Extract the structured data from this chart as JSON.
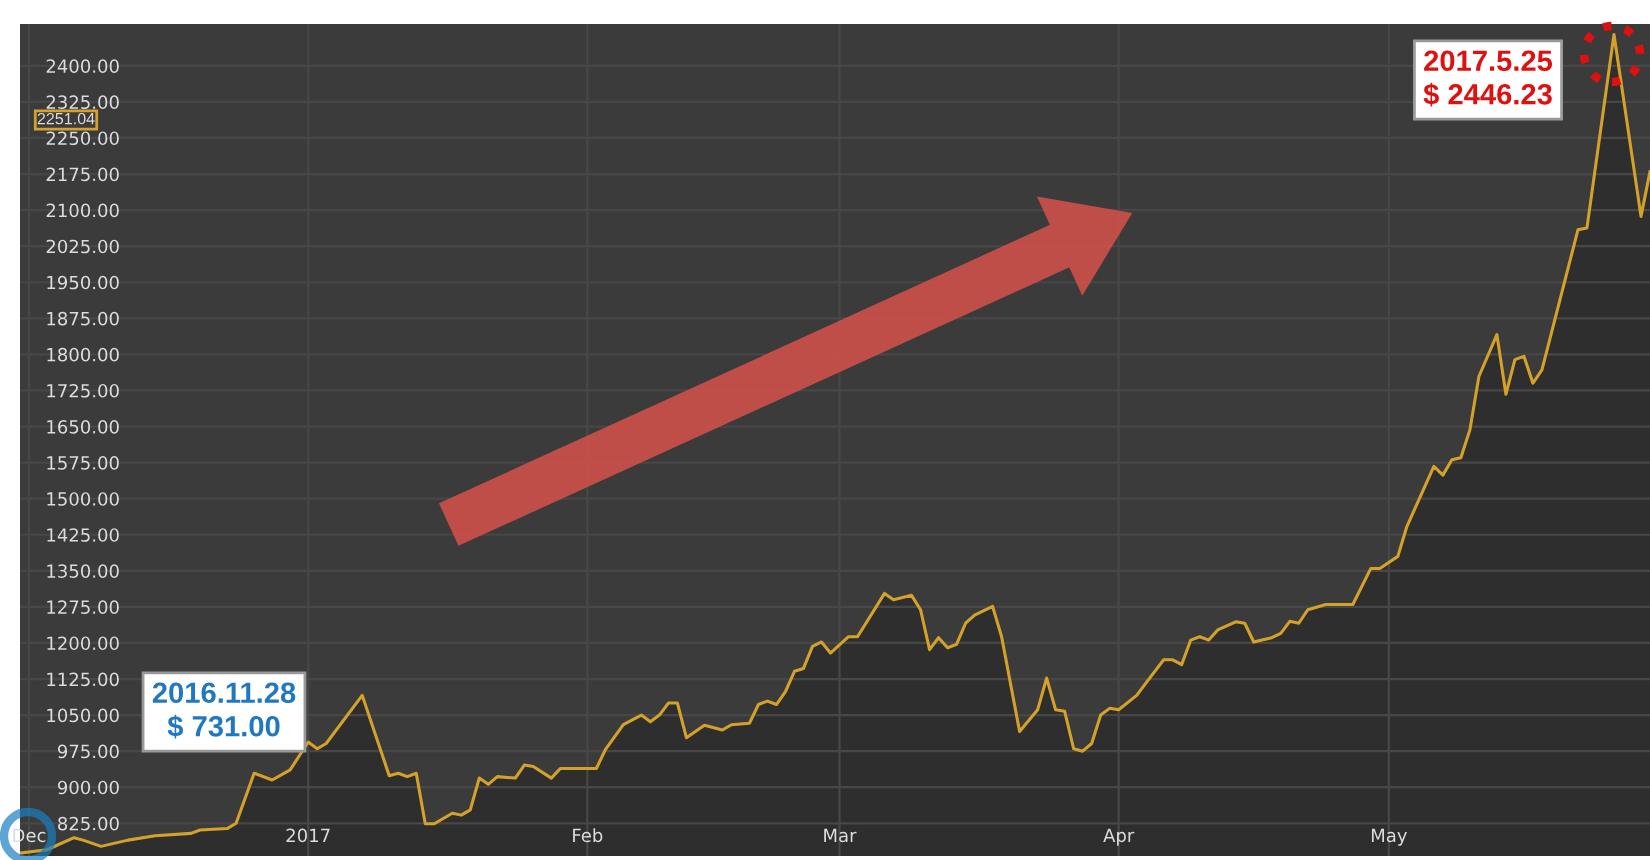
{
  "chart_data": {
    "type": "area",
    "x": [
      "2016-11-30",
      "2016-12-03",
      "2016-12-06",
      "2016-12-07",
      "2016-12-09",
      "2016-12-12",
      "2016-12-15",
      "2016-12-19",
      "2016-12-20",
      "2016-12-23",
      "2016-12-24",
      "2016-12-26",
      "2016-12-28",
      "2016-12-30",
      "2017-01-01",
      "2017-01-02",
      "2017-01-03",
      "2017-01-07",
      "2017-01-10",
      "2017-01-11",
      "2017-01-12",
      "2017-01-13",
      "2017-01-14",
      "2017-01-15",
      "2017-01-17",
      "2017-01-18",
      "2017-01-19",
      "2017-01-20",
      "2017-01-21",
      "2017-01-22",
      "2017-01-24",
      "2017-01-25",
      "2017-01-26",
      "2017-01-28",
      "2017-01-29",
      "2017-01-31",
      "2017-02-02",
      "2017-02-03",
      "2017-02-05",
      "2017-02-07",
      "2017-02-08",
      "2017-02-09",
      "2017-02-10",
      "2017-02-11",
      "2017-02-12",
      "2017-02-14",
      "2017-02-16",
      "2017-02-17",
      "2017-02-19",
      "2017-02-20",
      "2017-02-21",
      "2017-02-22",
      "2017-02-23",
      "2017-02-24",
      "2017-02-25",
      "2017-02-26",
      "2017-02-27",
      "2017-02-28",
      "2017-03-02",
      "2017-03-03",
      "2017-03-06",
      "2017-03-07",
      "2017-03-09",
      "2017-03-10",
      "2017-03-11",
      "2017-03-12",
      "2017-03-13",
      "2017-03-14",
      "2017-03-15",
      "2017-03-16",
      "2017-03-18",
      "2017-03-19",
      "2017-03-21",
      "2017-03-23",
      "2017-03-24",
      "2017-03-25",
      "2017-03-26",
      "2017-03-27",
      "2017-03-28",
      "2017-03-29",
      "2017-03-30",
      "2017-03-31",
      "2017-04-01",
      "2017-04-03",
      "2017-04-04",
      "2017-04-06",
      "2017-04-07",
      "2017-04-08",
      "2017-04-09",
      "2017-04-10",
      "2017-04-11",
      "2017-04-12",
      "2017-04-14",
      "2017-04-15",
      "2017-04-16",
      "2017-04-18",
      "2017-04-19",
      "2017-04-20",
      "2017-04-21",
      "2017-04-22",
      "2017-04-24",
      "2017-04-27",
      "2017-04-29",
      "2017-04-30",
      "2017-05-02",
      "2017-05-03",
      "2017-05-06",
      "2017-05-07",
      "2017-05-08",
      "2017-05-09",
      "2017-05-10",
      "2017-05-11",
      "2017-05-13",
      "2017-05-14",
      "2017-05-15",
      "2017-05-16",
      "2017-05-17",
      "2017-05-18",
      "2017-05-22",
      "2017-05-23",
      "2017-05-26",
      "2017-05-29",
      "2017-05-30"
    ],
    "series": [
      {
        "color": "#d4a22a",
        "values": [
          763,
          770,
          795,
          790,
          777,
          790,
          799,
          804,
          811,
          814,
          825,
          929,
          915,
          936,
          994,
          980,
          991,
          1091,
          924,
          929,
          922,
          929,
          824,
          824,
          846,
          842,
          853,
          919,
          906,
          922,
          919,
          946,
          943,
          919,
          939,
          939,
          939,
          978,
          1030,
          1050,
          1036,
          1050,
          1075,
          1075,
          1003,
          1029,
          1019,
          1030,
          1033,
          1072,
          1079,
          1072,
          1099,
          1141,
          1147,
          1193,
          1202,
          1179,
          1213,
          1213,
          1303,
          1290,
          1299,
          1269,
          1186,
          1211,
          1190,
          1197,
          1241,
          1258,
          1276,
          1213,
          1016,
          1061,
          1127,
          1061,
          1058,
          980,
          975,
          991,
          1050,
          1064,
          1061,
          1091,
          1116,
          1165,
          1165,
          1155,
          1206,
          1213,
          1206,
          1227,
          1244,
          1241,
          1202,
          1211,
          1220,
          1245,
          1241,
          1269,
          1280,
          1280,
          1355,
          1355,
          1380,
          1442,
          1567,
          1549,
          1581,
          1585,
          1643,
          1754,
          1841,
          1717,
          1789,
          1796,
          1740,
          1768,
          2059,
          2063,
          2465,
          2087,
          2180
        ]
      }
    ],
    "xlim": [
      "2016-11-30",
      "2017-05-30"
    ],
    "xticks": [
      {
        "value": "2016-12-01",
        "label": "Dec"
      },
      {
        "value": "2017-01-01",
        "label": "2017"
      },
      {
        "value": "2017-02-01",
        "label": "Feb"
      },
      {
        "value": "2017-03-01",
        "label": "Mar"
      },
      {
        "value": "2017-04-01",
        "label": "Apr"
      },
      {
        "value": "2017-05-01",
        "label": "May"
      }
    ],
    "ylim": [
      757,
      2487
    ],
    "yticks": [
      {
        "value": 825,
        "label": "825.00"
      },
      {
        "value": 900,
        "label": "900.00"
      },
      {
        "value": 975,
        "label": "975.00"
      },
      {
        "value": 1050,
        "label": "1050.00"
      },
      {
        "value": 1125,
        "label": "1125.00"
      },
      {
        "value": 1200,
        "label": "1200.00"
      },
      {
        "value": 1275,
        "label": "1275.00"
      },
      {
        "value": 1350,
        "label": "1350.00"
      },
      {
        "value": 1425,
        "label": "1425.00"
      },
      {
        "value": 1500,
        "label": "1500.00"
      },
      {
        "value": 1575,
        "label": "1575.00"
      },
      {
        "value": 1650,
        "label": "1650.00"
      },
      {
        "value": 1725,
        "label": "1725.00"
      },
      {
        "value": 1800,
        "label": "1800.00"
      },
      {
        "value": 1875,
        "label": "1875.00"
      },
      {
        "value": 1950,
        "label": "1950.00"
      },
      {
        "value": 2025,
        "label": "2025.00"
      },
      {
        "value": 2100,
        "label": "2100.00"
      },
      {
        "value": 2175,
        "label": "2175.00"
      },
      {
        "value": 2250,
        "label": "2250.00"
      },
      {
        "value": 2325,
        "label": "2325.00"
      },
      {
        "value": 2400,
        "label": "2400.00"
      }
    ],
    "grid": true,
    "annotations": [
      "2016.11.28\n$ 731.00",
      "2017.5.25\n$ 2446.23",
      "2251.04"
    ]
  }
}
